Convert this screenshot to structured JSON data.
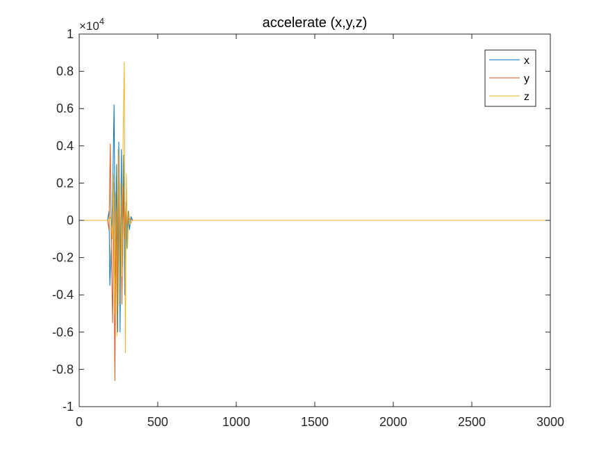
{
  "chart_data": {
    "type": "line",
    "title": "accelerate (x,y,z)",
    "xlabel": "",
    "ylabel": "",
    "xlim": [
      0,
      3000
    ],
    "ylim": [
      -1,
      1
    ],
    "y_multiplier_label": "×10",
    "y_multiplier_exponent": "4",
    "y_multiplier": 10000,
    "x_ticks": [
      0,
      500,
      1000,
      1500,
      2000,
      2500,
      3000
    ],
    "x_tick_labels": [
      "0",
      "500",
      "1000",
      "1500",
      "2000",
      "2500",
      "3000"
    ],
    "y_ticks": [
      -1,
      -0.8,
      -0.6,
      -0.4,
      -0.2,
      0,
      0.2,
      0.4,
      0.6,
      0.8,
      1
    ],
    "y_tick_labels": [
      "-1",
      "-0.8",
      "-0.6",
      "-0.4",
      "-0.2",
      "0",
      "0.2",
      "0.4",
      "0.6",
      "0.8",
      "1"
    ],
    "grid": false,
    "legend_position": "top-right",
    "series": [
      {
        "name": "x",
        "color": "#0072BD",
        "points": [
          [
            0,
            0
          ],
          [
            180,
            0
          ],
          [
            190,
            0.05
          ],
          [
            195,
            -0.35
          ],
          [
            205,
            -0.1
          ],
          [
            212,
            0.1
          ],
          [
            222,
            0.62
          ],
          [
            230,
            -0.3
          ],
          [
            238,
            0.3
          ],
          [
            245,
            -0.6
          ],
          [
            252,
            0.42
          ],
          [
            260,
            -0.6
          ],
          [
            268,
            0.38
          ],
          [
            275,
            -0.25
          ],
          [
            282,
            0.35
          ],
          [
            290,
            -0.4
          ],
          [
            298,
            0.1
          ],
          [
            305,
            -0.15
          ],
          [
            312,
            0.05
          ],
          [
            320,
            -0.05
          ],
          [
            330,
            0.02
          ],
          [
            340,
            0
          ],
          [
            3000,
            0
          ]
        ]
      },
      {
        "name": "y",
        "color": "#D95319",
        "points": [
          [
            0,
            0
          ],
          [
            180,
            0
          ],
          [
            190,
            -0.05
          ],
          [
            198,
            0.41
          ],
          [
            205,
            -0.2
          ],
          [
            213,
            -0.55
          ],
          [
            220,
            0.2
          ],
          [
            227,
            -0.86
          ],
          [
            235,
            0.05
          ],
          [
            242,
            -0.5
          ],
          [
            250,
            0.35
          ],
          [
            258,
            -0.3
          ],
          [
            265,
            0.2
          ],
          [
            272,
            -0.45
          ],
          [
            280,
            0.18
          ],
          [
            288,
            -0.1
          ],
          [
            296,
            0.05
          ],
          [
            305,
            -0.02
          ],
          [
            320,
            0.01
          ],
          [
            340,
            0
          ],
          [
            3000,
            0
          ]
        ]
      },
      {
        "name": "z",
        "color": "#EDB120",
        "points": [
          [
            0,
            0
          ],
          [
            190,
            0
          ],
          [
            200,
            0.02
          ],
          [
            210,
            -0.1
          ],
          [
            218,
            0.25
          ],
          [
            225,
            -0.5
          ],
          [
            232,
            0.15
          ],
          [
            240,
            -0.62
          ],
          [
            248,
            0.38
          ],
          [
            256,
            -0.45
          ],
          [
            264,
            0.2
          ],
          [
            272,
            -0.3
          ],
          [
            280,
            0.48
          ],
          [
            287,
            0.85
          ],
          [
            294,
            -0.71
          ],
          [
            300,
            0.25
          ],
          [
            308,
            -0.15
          ],
          [
            315,
            0.05
          ],
          [
            325,
            -0.02
          ],
          [
            340,
            0
          ],
          [
            3000,
            0
          ]
        ]
      }
    ]
  }
}
